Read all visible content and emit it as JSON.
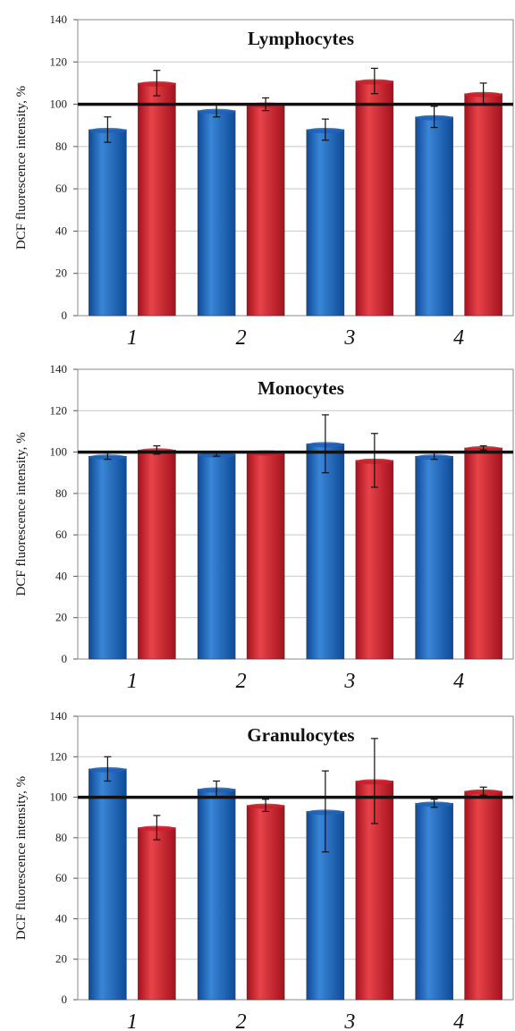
{
  "chart_data": [
    {
      "type": "bar",
      "title": "Lymphocytes",
      "ylabel": "DCF fluorescence intensity, %",
      "categories": [
        "1",
        "2",
        "3",
        "4"
      ],
      "ylim": [
        0,
        140
      ],
      "yticks": [
        0,
        20,
        40,
        60,
        80,
        100,
        120,
        140
      ],
      "reference_line": 100,
      "grid": true,
      "series": [
        {
          "color": "#1f63b8",
          "values": [
            88,
            97,
            88,
            94
          ],
          "errors": [
            6,
            3,
            5,
            5
          ]
        },
        {
          "color": "#cc1f2c",
          "values": [
            110,
            100,
            111,
            105
          ],
          "errors": [
            6,
            3,
            6,
            5
          ]
        }
      ]
    },
    {
      "type": "bar",
      "title": "Monocytes",
      "ylabel": "DCF fluorescence intensity, %",
      "categories": [
        "1",
        "2",
        "3",
        "4"
      ],
      "ylim": [
        0,
        140
      ],
      "yticks": [
        0,
        20,
        40,
        60,
        80,
        100,
        120,
        140
      ],
      "reference_line": 100,
      "grid": true,
      "series": [
        {
          "color": "#1f63b8",
          "values": [
            98,
            99,
            104,
            98
          ],
          "errors": [
            1.5,
            1,
            14,
            1.5
          ]
        },
        {
          "color": "#cc1f2c",
          "values": [
            101,
            100,
            96,
            102
          ],
          "errors": [
            2,
            0,
            13,
            1
          ]
        }
      ]
    },
    {
      "type": "bar",
      "title": "Granulocytes",
      "ylabel": "DCF fluorescence intensity, %",
      "categories": [
        "1",
        "2",
        "3",
        "4"
      ],
      "ylim": [
        0,
        140
      ],
      "yticks": [
        0,
        20,
        40,
        60,
        80,
        100,
        120,
        140
      ],
      "reference_line": 100,
      "grid": true,
      "series": [
        {
          "color": "#1f63b8",
          "values": [
            114,
            104,
            93,
            97
          ],
          "errors": [
            6,
            4,
            20,
            2
          ]
        },
        {
          "color": "#cc1f2c",
          "values": [
            85,
            96,
            108,
            103
          ],
          "errors": [
            6,
            3,
            21,
            2
          ]
        }
      ]
    }
  ]
}
